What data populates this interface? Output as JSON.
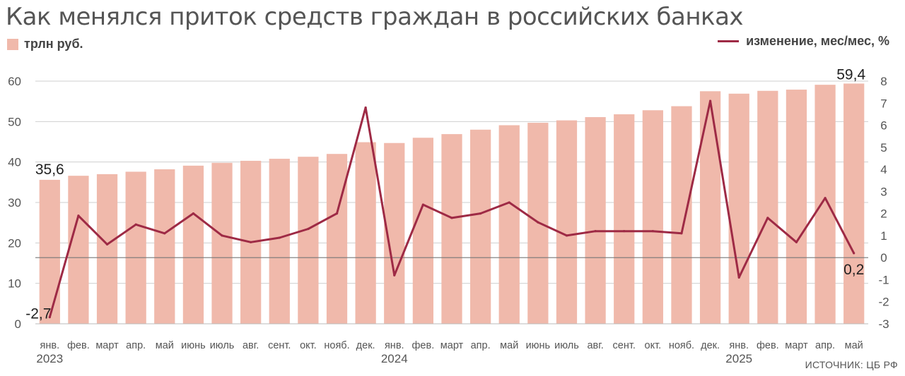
{
  "title": "Как менялся приток средств граждан в российских банках",
  "legend": {
    "bars_label": "трлн руб.",
    "line_label": "изменение, мес/мес, %"
  },
  "source": "ИСТОЧНИК: ЦБ РФ",
  "colors": {
    "bar": "#f0b9ab",
    "line": "#9e2a45",
    "grid": "#999999"
  },
  "chart_data": {
    "type": "bar",
    "categories": [
      "янв.",
      "фев.",
      "март",
      "апр.",
      "май",
      "июнь",
      "июль",
      "авг.",
      "сент.",
      "окт.",
      "нояб.",
      "дек.",
      "янв.",
      "фев.",
      "март",
      "апр.",
      "май",
      "июнь",
      "июль",
      "авг.",
      "сент.",
      "окт.",
      "нояб.",
      "дек.",
      "янв.",
      "фев.",
      "март",
      "апр.",
      "май"
    ],
    "year_labels": [
      {
        "index": 0,
        "label": "2023"
      },
      {
        "index": 12,
        "label": "2024"
      },
      {
        "index": 24,
        "label": "2025"
      }
    ],
    "series": [
      {
        "name": "трлн руб.",
        "type": "bar",
        "axis": "left",
        "values": [
          35.6,
          36.6,
          37.0,
          37.6,
          38.2,
          39.1,
          39.8,
          40.3,
          40.8,
          41.3,
          42.0,
          44.9,
          44.7,
          46.0,
          46.9,
          48.0,
          49.1,
          49.7,
          50.3,
          51.1,
          51.8,
          52.8,
          53.8,
          57.5,
          56.9,
          57.6,
          57.9,
          59.1,
          59.4
        ]
      },
      {
        "name": "изменение, мес/мес, %",
        "type": "line",
        "axis": "right",
        "values": [
          -2.7,
          1.9,
          0.6,
          1.5,
          1.1,
          2.0,
          1.0,
          0.7,
          0.9,
          1.3,
          2.0,
          6.8,
          -0.8,
          2.4,
          1.8,
          2.0,
          2.5,
          1.6,
          1.0,
          1.2,
          1.2,
          1.2,
          1.1,
          7.1,
          -0.9,
          1.8,
          0.7,
          2.7,
          0.2
        ]
      }
    ],
    "y_left": {
      "ylim": [
        0,
        60
      ],
      "ticks": [
        "0",
        "10",
        "20",
        "30",
        "40",
        "50",
        "60"
      ]
    },
    "y_right": {
      "ylim": [
        -3,
        8
      ],
      "ticks": [
        "-3",
        "-2",
        "-1",
        "0",
        "1",
        "2",
        "3",
        "4",
        "5",
        "6",
        "7",
        "8"
      ]
    },
    "annotations": {
      "first_bar": "35,6",
      "last_bar": "59,4",
      "first_line": "-2,7",
      "last_line": "0,2"
    }
  }
}
